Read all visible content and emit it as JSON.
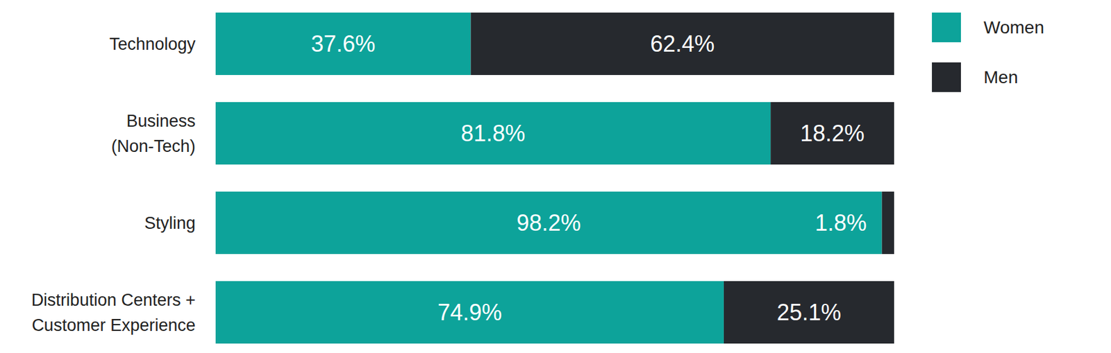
{
  "chart_data": {
    "type": "bar",
    "orientation": "horizontal",
    "stacked": true,
    "data_labels": true,
    "tick_labels": false,
    "grid": false,
    "legend": "top-right",
    "categories": [
      "Technology",
      "Business\n(Non-Tech)",
      "Styling",
      "Distribution Centers +\nCustomer Experience"
    ],
    "xlim": [
      0,
      100
    ],
    "series": [
      {
        "name": "Women",
        "color": "#0da39a",
        "values": [
          37.6,
          81.8,
          98.2,
          74.9
        ],
        "value_labels": [
          "37.6%",
          "81.8%",
          "98.2%",
          "74.9%"
        ]
      },
      {
        "name": "Men",
        "color": "#26292e",
        "values": [
          62.4,
          18.2,
          1.8,
          25.1
        ],
        "value_labels": [
          "62.4%",
          "18.2%",
          "1.8%",
          "25.1%"
        ]
      }
    ]
  }
}
